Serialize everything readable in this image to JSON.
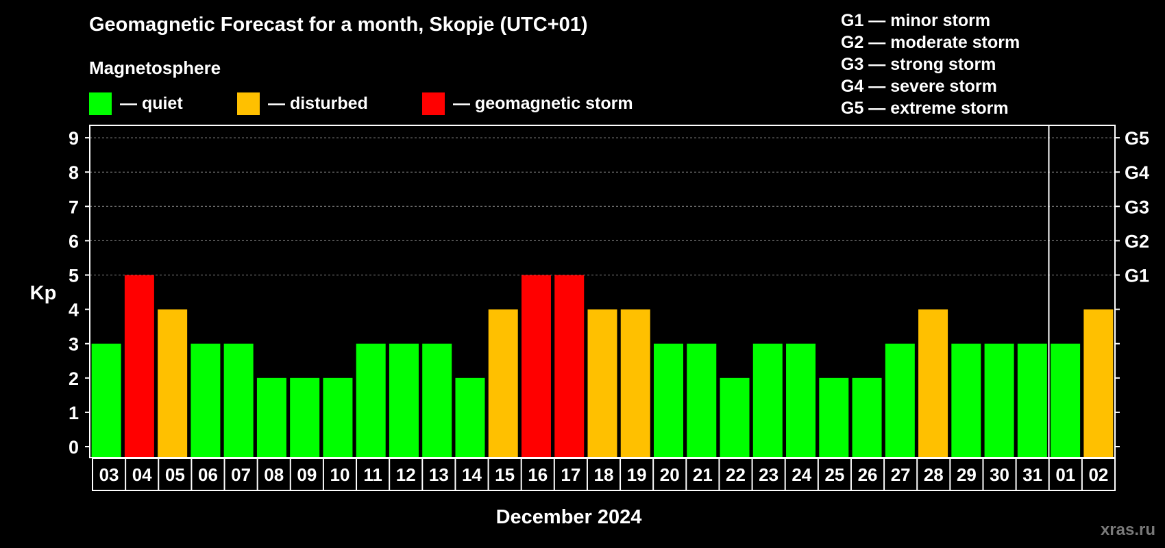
{
  "header": {
    "title": "Geomagnetic Forecast for a month, Skopje (UTC+01)",
    "subtitle": "Magnetosphere",
    "watermark": "xras.ru"
  },
  "legend": [
    {
      "label": "— quiet",
      "color": "#00ff00"
    },
    {
      "label": "— disturbed",
      "color": "#ffc000"
    },
    {
      "label": "— geomagnetic storm",
      "color": "#ff0000"
    }
  ],
  "g_scale": [
    "G1 — minor storm",
    "G2 — moderate storm",
    "G3 — strong storm",
    "G4 — severe storm",
    "G5 — extreme storm"
  ],
  "colors": {
    "quiet": "#00ff00",
    "disturbed": "#ffc000",
    "storm": "#ff0000",
    "background": "#000000",
    "frame": "#ffffff",
    "grid": "#8c8c8c"
  },
  "chart_data": {
    "type": "bar",
    "title": "Geomagnetic Forecast for a month, Skopje (UTC+01)",
    "xlabel": "December 2024",
    "ylabel": "Kp",
    "ylim": [
      0,
      9
    ],
    "yticks": [
      "0",
      "1",
      "2",
      "3",
      "4",
      "5",
      "6",
      "7",
      "8",
      "9"
    ],
    "right_labels": [
      {
        "kp": 5,
        "label": "G1"
      },
      {
        "kp": 6,
        "label": "G2"
      },
      {
        "kp": 7,
        "label": "G3"
      },
      {
        "kp": 8,
        "label": "G4"
      },
      {
        "kp": 9,
        "label": "G5"
      }
    ],
    "grid": true,
    "month_break_after": "31",
    "categories": [
      "03",
      "04",
      "05",
      "06",
      "07",
      "08",
      "09",
      "10",
      "11",
      "12",
      "13",
      "14",
      "15",
      "16",
      "17",
      "18",
      "19",
      "20",
      "21",
      "22",
      "23",
      "24",
      "25",
      "26",
      "27",
      "28",
      "29",
      "30",
      "31",
      "01",
      "02"
    ],
    "values": [
      3,
      5,
      4,
      3,
      3,
      2,
      2,
      2,
      3,
      3,
      3,
      2,
      4,
      5,
      5,
      4,
      4,
      3,
      3,
      2,
      3,
      3,
      2,
      2,
      3,
      4,
      3,
      3,
      3,
      3,
      4
    ],
    "levels": [
      "quiet",
      "storm",
      "disturbed",
      "quiet",
      "quiet",
      "quiet",
      "quiet",
      "quiet",
      "quiet",
      "quiet",
      "quiet",
      "quiet",
      "disturbed",
      "storm",
      "storm",
      "disturbed",
      "disturbed",
      "quiet",
      "quiet",
      "quiet",
      "quiet",
      "quiet",
      "quiet",
      "quiet",
      "quiet",
      "disturbed",
      "quiet",
      "quiet",
      "quiet",
      "quiet",
      "disturbed"
    ]
  }
}
